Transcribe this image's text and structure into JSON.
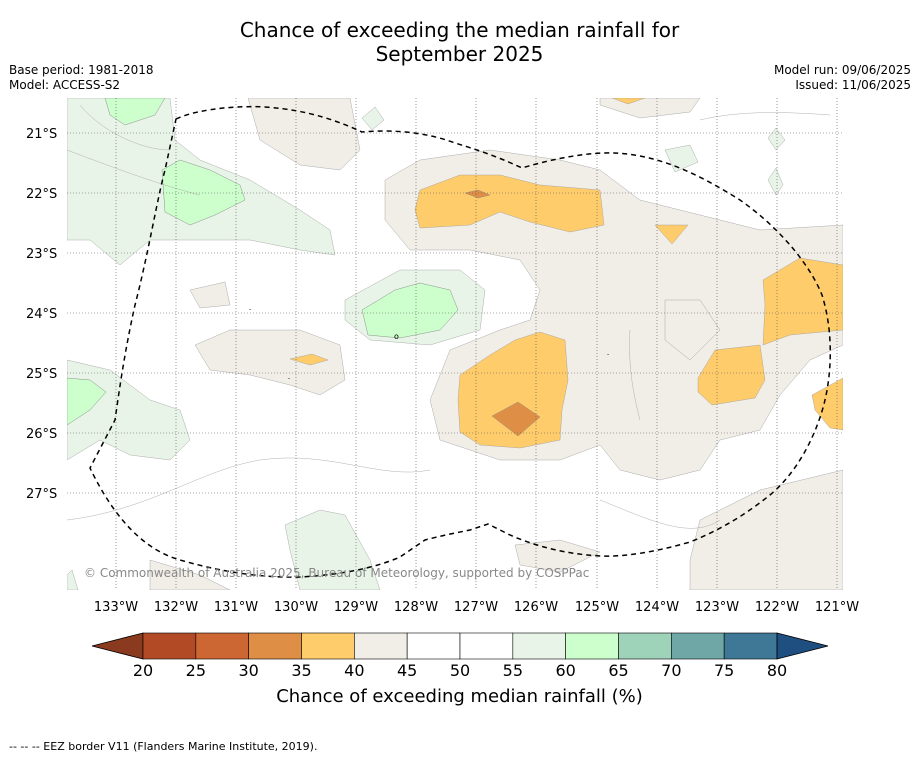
{
  "title_line1": "Chance of exceeding the median rainfall for",
  "title_line2": "September 2025",
  "base_period": "Base period: 1981-2018",
  "model": "Model: ACCESS-S2",
  "model_run": "Model run: 09/06/2025",
  "issued": "Issued: 11/06/2025",
  "copyright": "© Commonwealth of Australia 2025, Bureau of Meteorology, supported by COSPPac",
  "lon_labels": [
    "133°W",
    "132°W",
    "131°W",
    "130°W",
    "129°W",
    "128°W",
    "127°W",
    "126°W",
    "125°W",
    "124°W",
    "123°W",
    "122°W",
    "121°W"
  ],
  "lat_labels": [
    "21°S",
    "22°S",
    "23°S",
    "24°S",
    "25°S",
    "26°S",
    "27°S"
  ],
  "colorbar": {
    "label": "Chance of exceeding median rainfall (%)",
    "ticks": [
      "20",
      "25",
      "30",
      "35",
      "40",
      "45",
      "50",
      "55",
      "60",
      "65",
      "70",
      "75",
      "80"
    ],
    "colors": [
      "#b24a25",
      "#cc6632",
      "#df8f45",
      "#fecc6b",
      "#f1ede7",
      "#ffffff",
      "#ffffff",
      "#e8f4e8",
      "#ccffcc",
      "#9ed2b9",
      "#6fa6a6",
      "#3e7896"
    ],
    "under_color": "#8a3a1e",
    "over_color": "#1e4f80"
  },
  "footer": "--  --  -- EEZ border V11 (Flanders Marine Institute, 2019).",
  "contour_labels": [
    "o",
    "-",
    "-",
    "-"
  ]
}
